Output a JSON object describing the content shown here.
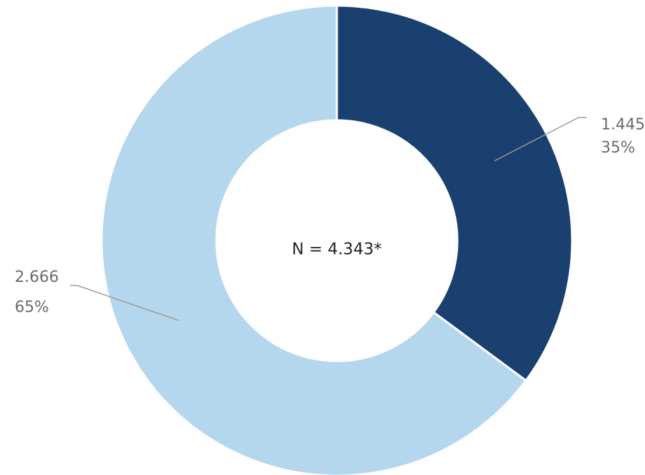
{
  "chart_data": {
    "type": "pie",
    "donut": true,
    "center_label": "N = 4.343*",
    "slices": [
      {
        "value": 1445,
        "value_label": "1.445",
        "percent_label": "35%",
        "color": "#1a406f"
      },
      {
        "value": 2666,
        "value_label": "2.666",
        "percent_label": "65%",
        "color": "#b4d7ee"
      }
    ],
    "start_angle_deg": 0,
    "direction": "clockwise",
    "slice_separator_color": "#ffffff"
  }
}
